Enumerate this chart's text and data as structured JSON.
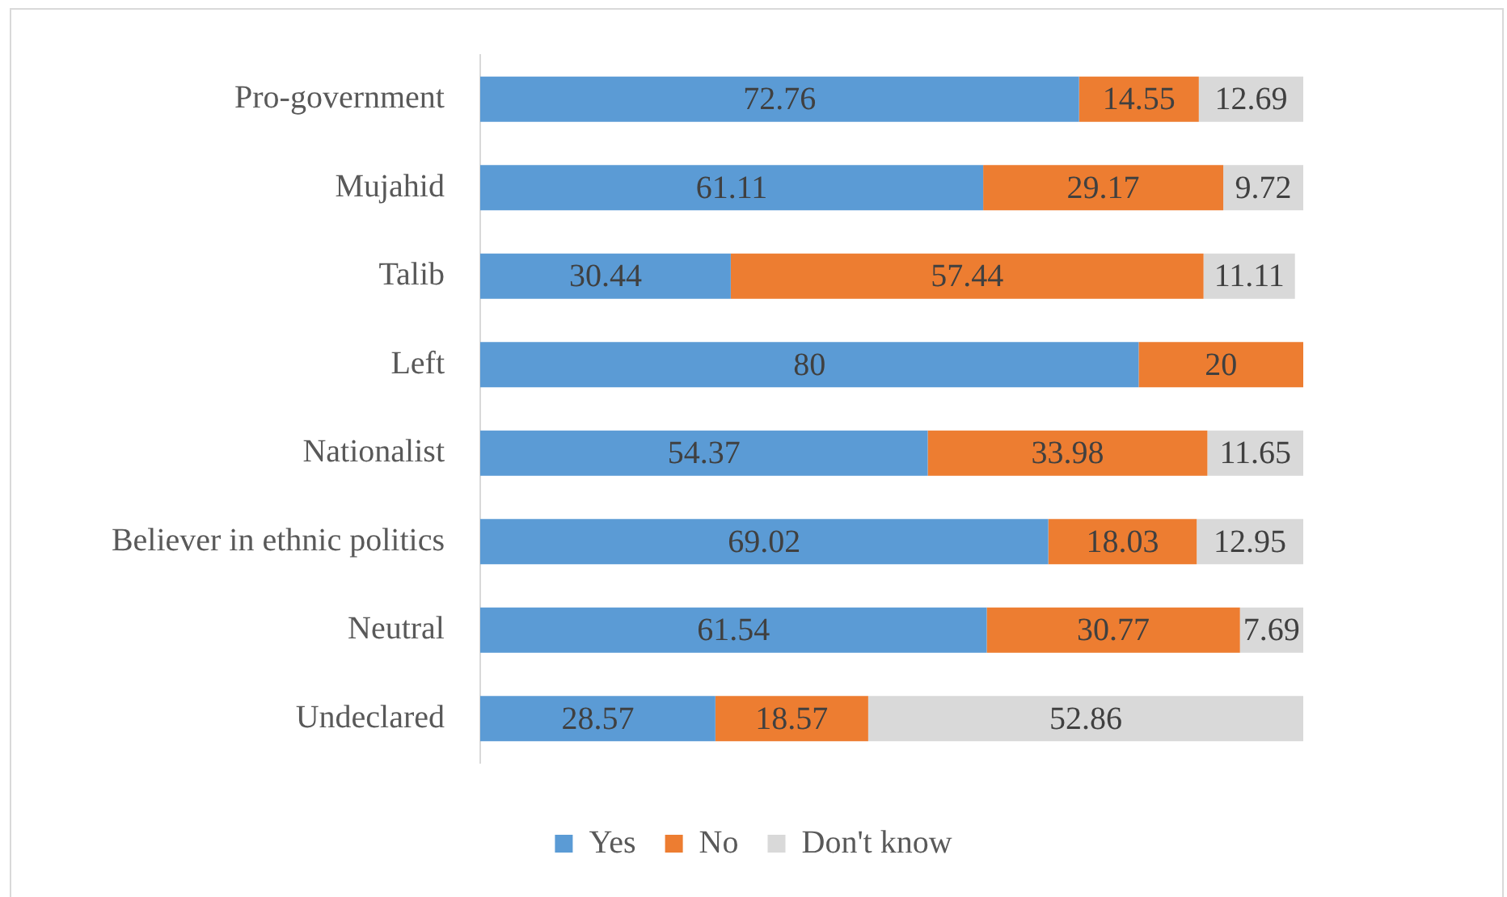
{
  "chart_data": {
    "type": "bar",
    "orientation": "horizontal",
    "stacked": true,
    "data_labels": true,
    "legend": "bottom",
    "categories": [
      "Pro-government",
      "Mujahid",
      "Talib",
      "Left",
      "Nationalist",
      "Believer in ethnic politics",
      "Neutral",
      "Undeclared"
    ],
    "series": [
      {
        "name": "Yes",
        "color": "#5b9bd5",
        "values": [
          72.76,
          61.11,
          30.44,
          80,
          54.37,
          69.02,
          61.54,
          28.57
        ]
      },
      {
        "name": "No",
        "color": "#ed7d31",
        "values": [
          14.55,
          29.17,
          57.44,
          20,
          33.98,
          18.03,
          30.77,
          18.57
        ]
      },
      {
        "name": "Don't know",
        "color": "#d9d9d9",
        "values": [
          12.69,
          9.72,
          11.11,
          null,
          11.65,
          12.95,
          7.69,
          52.86
        ]
      }
    ]
  }
}
